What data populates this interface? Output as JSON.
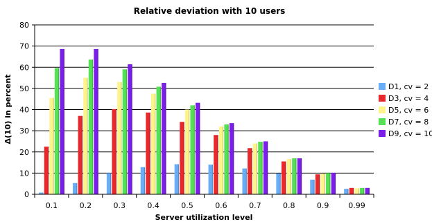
{
  "chart_data": {
    "type": "bar",
    "title": "Relative deviation with 10 users",
    "xlabel": "Server utilization level",
    "ylabel": "Δ(10) in percent",
    "ylim": [
      0,
      80
    ],
    "yticks": [
      "0",
      "10",
      "20",
      "30",
      "40",
      "50",
      "60",
      "70",
      "80"
    ],
    "categories": [
      "0.1",
      "0.2",
      "0.3",
      "0.4",
      "0.5",
      "0.6",
      "0.7",
      "0.8",
      "0.9",
      "0.99"
    ],
    "grid": "horizontal",
    "legend_position": "right",
    "series": [
      {
        "name": "D1, cv = 2",
        "color": "#6aaef8",
        "values": [
          0.8,
          5.3,
          10.0,
          12.8,
          14.2,
          14.0,
          12.2,
          9.8,
          6.9,
          2.6
        ]
      },
      {
        "name": "D3, cv = 4",
        "color": "#e8282c",
        "values": [
          22.5,
          37.0,
          40.2,
          38.6,
          34.2,
          28.0,
          21.8,
          15.5,
          9.4,
          3.0
        ]
      },
      {
        "name": "D5, cv = 6",
        "color": "#fdf58c",
        "values": [
          45.5,
          55.0,
          53.0,
          47.5,
          40.0,
          32.0,
          24.0,
          16.6,
          9.7,
          2.8
        ]
      },
      {
        "name": "D7, cv = 8",
        "color": "#55e055",
        "values": [
          59.6,
          63.6,
          59.0,
          50.8,
          42.0,
          33.0,
          24.8,
          17.0,
          10.0,
          3.0
        ]
      },
      {
        "name": "D9, cv = 10",
        "color": "#7a1ee8",
        "values": [
          68.6,
          68.6,
          61.4,
          52.6,
          43.2,
          33.6,
          25.0,
          17.0,
          10.1,
          3.0
        ]
      }
    ]
  }
}
